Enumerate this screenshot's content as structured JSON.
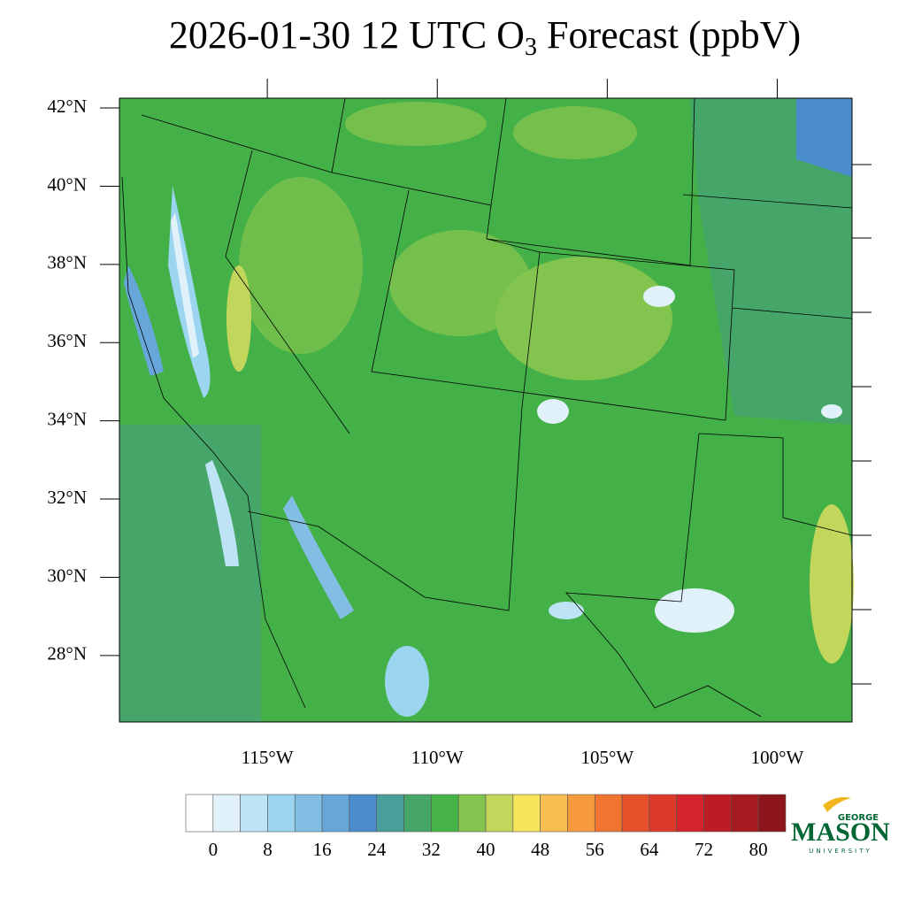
{
  "header": {
    "title": {
      "text": "2026-01-30 12 UTC O",
      "subscript": "3",
      "suffix": " Forecast (ppbV)"
    }
  },
  "map": {
    "type": "contour-map",
    "ylim": [
      26.3,
      42.25
    ],
    "yticks": [
      {
        "value": 28,
        "label": "28°N"
      },
      {
        "value": 30,
        "label": "30°N"
      },
      {
        "value": 32,
        "label": "32°N"
      },
      {
        "value": 34,
        "label": "34°N"
      },
      {
        "value": 36,
        "label": "36°N"
      },
      {
        "value": 38,
        "label": "38°N"
      },
      {
        "value": 40,
        "label": "40°N"
      },
      {
        "value": 42,
        "label": "42°N"
      }
    ],
    "xlim": [
      -119.35,
      -97.8
    ],
    "xticks": [
      {
        "value": -115,
        "label": "115°W"
      },
      {
        "value": -110,
        "label": "110°W"
      },
      {
        "value": -105,
        "label": "105°W"
      },
      {
        "value": -100,
        "label": "100°W"
      }
    ]
  },
  "colorbar": {
    "range": [
      -4,
      84
    ],
    "ticks": [
      0,
      8,
      16,
      24,
      32,
      40,
      48,
      56,
      64,
      72,
      80
    ],
    "colors": [
      "#ffffff",
      "#e1f1fa",
      "#bde3f5",
      "#9cd5f0",
      "#82bde3",
      "#66a6d9",
      "#4b8ccb",
      "#4a9e9a",
      "#46a66a",
      "#45b347",
      "#82c44e",
      "#c1d65a",
      "#f6e45a",
      "#f9be52",
      "#f79a3e",
      "#f07530",
      "#e5512b",
      "#de3a2b",
      "#d4232a",
      "#bc1d24",
      "#a51a1f",
      "#8c151b"
    ]
  },
  "logo": {
    "top": "GEORGE",
    "name": "MASON",
    "bottom": "UNIVERSITY"
  }
}
